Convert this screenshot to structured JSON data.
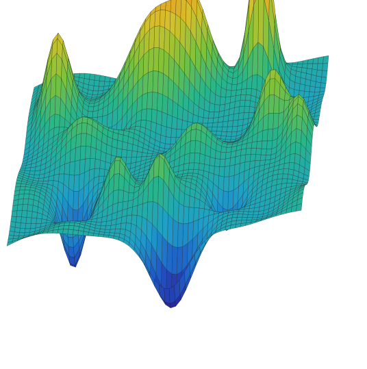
{
  "image": {
    "kind": "3d-surface-mesh-plot",
    "background": "#ffffff",
    "colormap": [
      "#2a1f9a",
      "#1f5fc8",
      "#1fa0c8",
      "#27b58a",
      "#7cc23a",
      "#d6c12b",
      "#ef8a1c",
      "#d8281c"
    ],
    "mesh_line_color": "#1a1a1a"
  }
}
